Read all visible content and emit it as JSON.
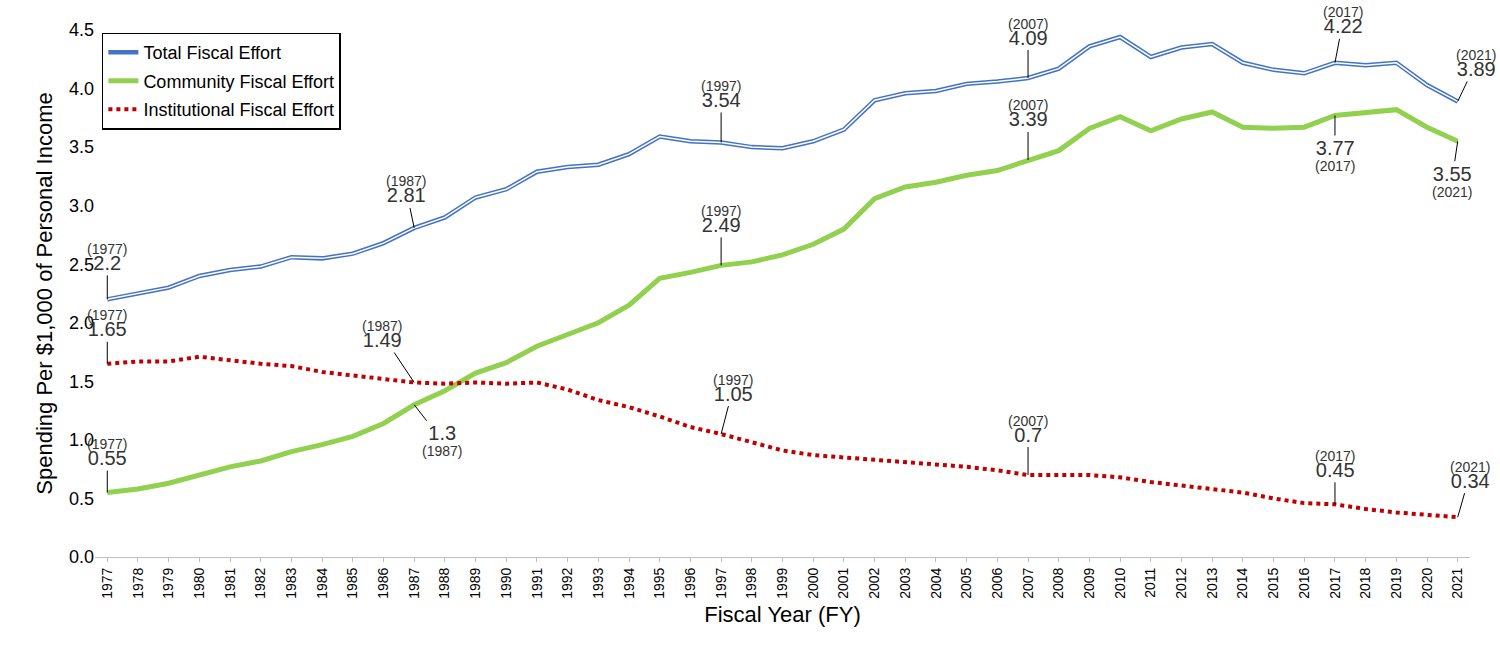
{
  "chart_data": {
    "type": "line",
    "x_label": "Fiscal Year (FY)",
    "y_label": "Spending Per $1,000 of Personal Income",
    "x": [
      1977,
      1978,
      1979,
      1980,
      1981,
      1982,
      1983,
      1984,
      1985,
      1986,
      1987,
      1988,
      1989,
      1990,
      1991,
      1992,
      1993,
      1994,
      1995,
      1996,
      1997,
      1998,
      1999,
      2000,
      2001,
      2002,
      2003,
      2004,
      2005,
      2006,
      2007,
      2008,
      2009,
      2010,
      2011,
      2012,
      2013,
      2014,
      2015,
      2016,
      2017,
      2018,
      2019,
      2020,
      2021
    ],
    "series": [
      {
        "name": "Total Fiscal Effort",
        "color": "#4472c4",
        "line_style": "double",
        "values": [
          2.2,
          2.25,
          2.3,
          2.4,
          2.45,
          2.48,
          2.56,
          2.55,
          2.59,
          2.68,
          2.81,
          2.9,
          3.07,
          3.14,
          3.29,
          3.33,
          3.35,
          3.44,
          3.59,
          3.55,
          3.54,
          3.5,
          3.49,
          3.55,
          3.65,
          3.9,
          3.96,
          3.98,
          4.04,
          4.06,
          4.09,
          4.17,
          4.36,
          4.44,
          4.27,
          4.35,
          4.38,
          4.22,
          4.16,
          4.13,
          4.22,
          4.2,
          4.22,
          4.03,
          3.89
        ]
      },
      {
        "name": "Community Fiscal Effort",
        "color": "#92d050",
        "line_style": "solid",
        "values": [
          0.55,
          0.58,
          0.63,
          0.7,
          0.77,
          0.82,
          0.9,
          0.96,
          1.03,
          1.14,
          1.3,
          1.42,
          1.57,
          1.66,
          1.8,
          1.9,
          2.0,
          2.15,
          2.38,
          2.43,
          2.49,
          2.52,
          2.58,
          2.67,
          2.8,
          3.06,
          3.16,
          3.2,
          3.26,
          3.3,
          3.39,
          3.47,
          3.66,
          3.76,
          3.64,
          3.74,
          3.8,
          3.67,
          3.66,
          3.67,
          3.77,
          3.8,
          3.82,
          3.67,
          3.55
        ]
      },
      {
        "name": "Institutional Fiscal Effort",
        "color": "#c00000",
        "line_style": "dotted",
        "values": [
          1.65,
          1.67,
          1.67,
          1.71,
          1.68,
          1.65,
          1.63,
          1.58,
          1.55,
          1.52,
          1.49,
          1.48,
          1.49,
          1.48,
          1.49,
          1.43,
          1.34,
          1.28,
          1.2,
          1.11,
          1.05,
          0.98,
          0.91,
          0.87,
          0.85,
          0.83,
          0.81,
          0.79,
          0.77,
          0.74,
          0.7,
          0.7,
          0.7,
          0.68,
          0.64,
          0.61,
          0.58,
          0.55,
          0.5,
          0.46,
          0.45,
          0.41,
          0.38,
          0.36,
          0.34
        ]
      }
    ],
    "annotations": [
      {
        "x": 1977,
        "y": 2.2,
        "text": [
          "(1977)",
          "2.2"
        ]
      },
      {
        "x": 1987,
        "y": 2.81,
        "text": [
          "(1987)",
          "2.81"
        ]
      },
      {
        "x": 1997,
        "y": 3.54,
        "text": [
          "(1997)",
          "3.54"
        ]
      },
      {
        "x": 2007,
        "y": 4.09,
        "text": [
          "(2007)",
          "4.09"
        ]
      },
      {
        "x": 2017,
        "y": 4.22,
        "text": [
          "(2017)",
          "4.22"
        ]
      },
      {
        "x": 2021,
        "y": 3.89,
        "text": [
          "(2021)",
          "3.89"
        ]
      },
      {
        "x": 1977,
        "y": 0.55,
        "text": [
          "(1977)",
          "0.55"
        ]
      },
      {
        "x": 1987,
        "y": 1.3,
        "text": [
          "1.3",
          "(1987)"
        ]
      },
      {
        "x": 1997,
        "y": 2.49,
        "text": [
          "(1997)",
          "2.49"
        ]
      },
      {
        "x": 2007,
        "y": 3.39,
        "text": [
          "(2007)",
          "3.39"
        ]
      },
      {
        "x": 2017,
        "y": 3.77,
        "text": [
          "3.77",
          "(2017)"
        ]
      },
      {
        "x": 2021,
        "y": 3.55,
        "text": [
          "3.55",
          "(2021)"
        ]
      },
      {
        "x": 1977,
        "y": 1.65,
        "text": [
          "(1977)",
          "1.65"
        ]
      },
      {
        "x": 1987,
        "y": 1.49,
        "text": [
          "(1987)",
          "1.49"
        ]
      },
      {
        "x": 1997,
        "y": 1.05,
        "text": [
          "(1997)",
          "1.05"
        ]
      },
      {
        "x": 2007,
        "y": 0.7,
        "text": [
          "(2007)",
          "0.7"
        ]
      },
      {
        "x": 2017,
        "y": 0.45,
        "text": [
          "(2017)",
          "0.45"
        ]
      },
      {
        "x": 2021,
        "y": 0.34,
        "text": [
          "(2021)",
          "0.34"
        ]
      }
    ],
    "xlim": [
      1976.6,
      2021.4
    ],
    "xticks": [
      1977,
      1978,
      1979,
      1980,
      1981,
      1982,
      1983,
      1984,
      1985,
      1986,
      1987,
      1988,
      1989,
      1990,
      1991,
      1992,
      1993,
      1994,
      1995,
      1996,
      1997,
      1998,
      1999,
      2000,
      2001,
      2002,
      2003,
      2004,
      2005,
      2006,
      2007,
      2008,
      2009,
      2010,
      2011,
      2012,
      2013,
      2014,
      2015,
      2016,
      2017,
      2018,
      2019,
      2020,
      2021
    ],
    "ylim": [
      0,
      4.5
    ],
    "yticks": [
      {
        "value": 0,
        "label": "0.0"
      },
      0.5,
      {
        "value": 1,
        "label": "1.0"
      },
      1.5,
      {
        "value": 2,
        "label": "2.0"
      },
      2.5,
      {
        "value": 3,
        "label": "3.0"
      },
      3.5,
      {
        "value": 4,
        "label": "4.0"
      },
      4.5
    ],
    "grid": false,
    "legend": "top left"
  }
}
